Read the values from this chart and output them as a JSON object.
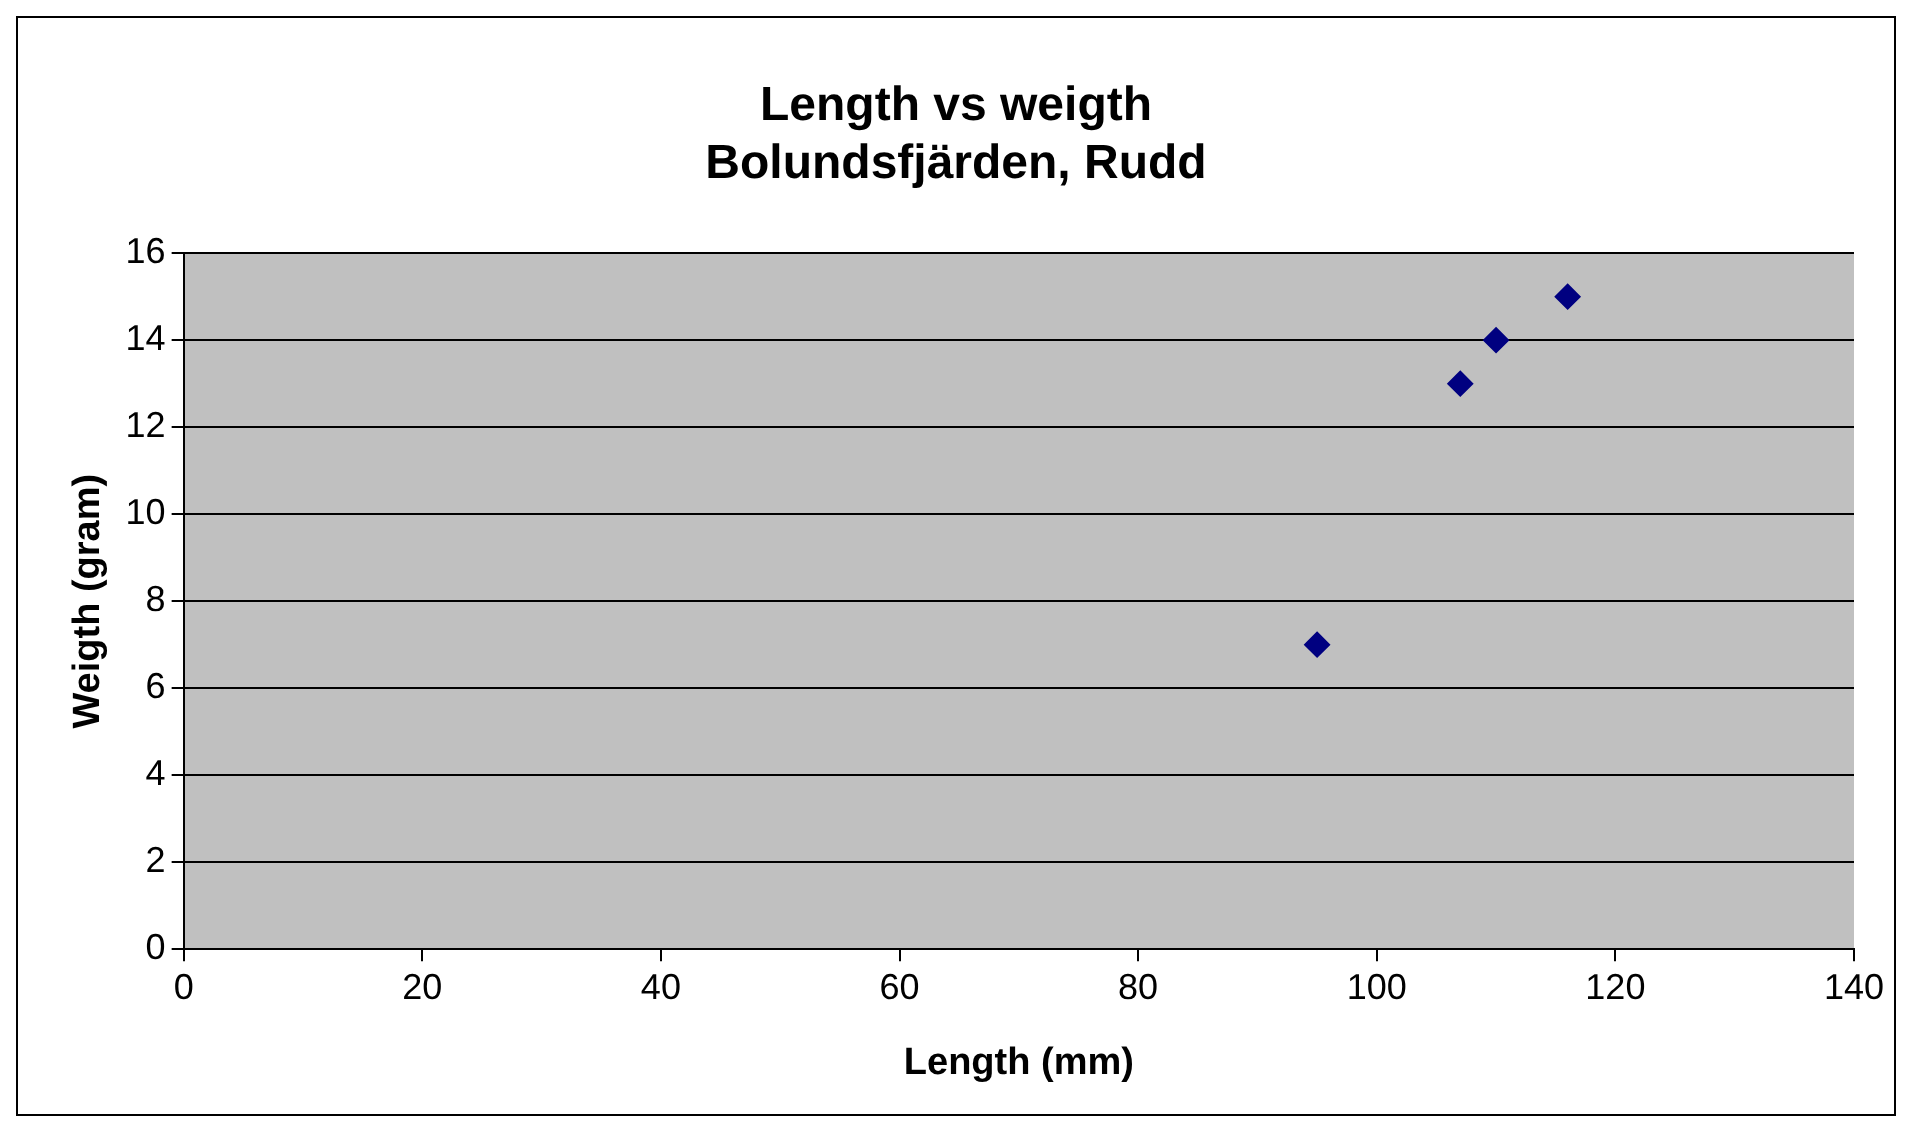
{
  "chart_data": {
    "type": "scatter",
    "title": [
      "Length vs weigth",
      "Bolundsfjärden, Rudd"
    ],
    "xlabel": "Length (mm)",
    "ylabel": "Weigth (gram)",
    "x": [
      95,
      107,
      110,
      116
    ],
    "values": [
      7,
      13,
      14,
      15
    ],
    "color": "#000080",
    "marker": "diamond",
    "xlim": [
      0,
      140
    ],
    "xticks": [
      0,
      20,
      40,
      60,
      80,
      100,
      120,
      140
    ],
    "ylim": [
      0,
      16
    ],
    "yticks": [
      0,
      2,
      4,
      6,
      8,
      10,
      12,
      14,
      16
    ],
    "grid": "y",
    "legend": false
  }
}
